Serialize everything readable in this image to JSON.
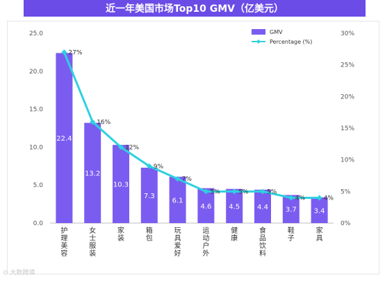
{
  "header": {
    "title": "近一年美国市场Top10 GMV（亿美元）"
  },
  "watermark": {
    "text": "⊙ 大数跨境"
  },
  "chart_data": {
    "type": "bar",
    "categories": [
      "护理美容",
      "女士服装",
      "家装",
      "箱包",
      "玩具爱好",
      "运动户外",
      "健康",
      "食品饮料",
      "鞋子",
      "家具"
    ],
    "series": [
      {
        "name": "GMV",
        "type": "bar",
        "axis": "left",
        "values": [
          22.4,
          13.2,
          10.3,
          7.3,
          6.1,
          4.6,
          4.5,
          4.4,
          3.7,
          3.4
        ],
        "color": "#7b5cf0"
      },
      {
        "name": "Percentage (%)",
        "type": "line",
        "axis": "right",
        "values": [
          27,
          16,
          12,
          9,
          7,
          5,
          5,
          5,
          4,
          4
        ],
        "color": "#2fd0e0"
      }
    ],
    "y_left": {
      "min": 0,
      "max": 25,
      "ticks": [
        "0.0",
        "5.0",
        "10.0",
        "15.0",
        "20.0",
        "25.0"
      ]
    },
    "y_right": {
      "min": 0,
      "max": 30,
      "ticks": [
        "0%",
        "5%",
        "10%",
        "15%",
        "20%",
        "25%",
        "30%"
      ]
    },
    "bar_labels": [
      "22.4",
      "13.2",
      "10.3",
      "7.3",
      "6.1",
      "4.6",
      "4.5",
      "4.4",
      "3.7",
      "3.4"
    ],
    "line_labels": [
      "27%",
      "16%",
      "12%",
      "9%",
      "7%",
      "5%",
      "5%",
      "5%",
      "4%",
      "4%"
    ],
    "legend_position": "top-right",
    "grid": false
  }
}
